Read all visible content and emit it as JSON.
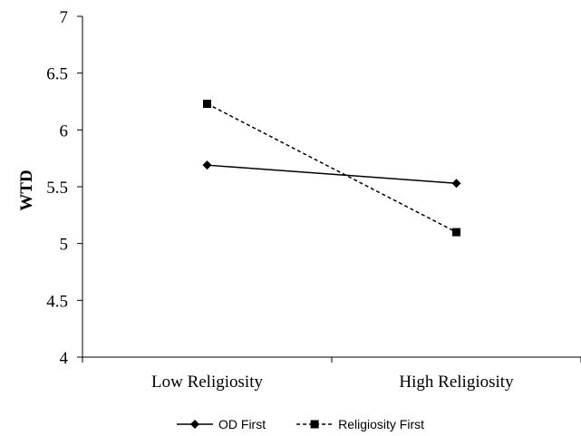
{
  "chart_data": {
    "type": "line",
    "title": "",
    "xlabel": "",
    "ylabel": "WTD",
    "categories": [
      "Low Religiosity",
      "High Religiosity"
    ],
    "ylim": [
      4,
      7
    ],
    "yticks": [
      "4",
      "4.5",
      "5",
      "5.5",
      "6",
      "6.5",
      "7"
    ],
    "grid": false,
    "legend": "bottom",
    "series": [
      {
        "name": "OD First",
        "values": [
          5.69,
          5.53
        ],
        "color": "#000000",
        "line_style": "solid",
        "marker": "diamond"
      },
      {
        "name": "Religiosity First",
        "values": [
          6.23,
          5.1
        ],
        "color": "#000000",
        "line_style": "dashed",
        "marker": "square"
      }
    ]
  }
}
